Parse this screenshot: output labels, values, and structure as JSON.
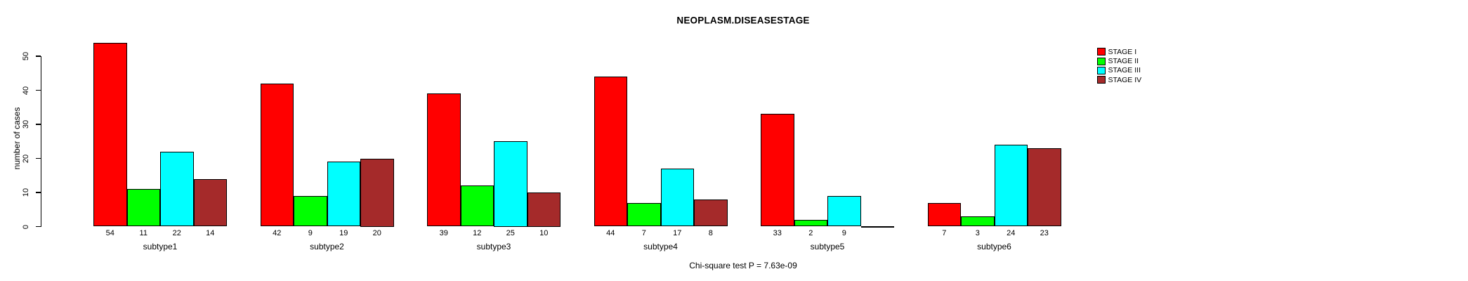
{
  "chart_data": {
    "type": "bar",
    "title": "NEOPLASM.DISEASESTAGE",
    "ylabel": "number of cases",
    "xlabel": "",
    "ylim": [
      0,
      50
    ],
    "yticks": [
      0,
      10,
      20,
      30,
      40,
      50
    ],
    "grid": false,
    "legend_position": "right-outside-top",
    "categories": [
      "subtype1",
      "subtype2",
      "subtype3",
      "subtype4",
      "subtype5",
      "subtype6"
    ],
    "series": [
      {
        "name": "STAGE I",
        "color": "#FF0000",
        "values": [
          54,
          42,
          39,
          44,
          33,
          7
        ]
      },
      {
        "name": "STAGE II",
        "color": "#00FF00",
        "values": [
          11,
          9,
          12,
          7,
          2,
          3
        ]
      },
      {
        "name": "STAGE III",
        "color": "#00FFFF",
        "values": [
          22,
          19,
          25,
          17,
          9,
          24
        ]
      },
      {
        "name": "STAGE IV",
        "color": "#A52A2A",
        "values": [
          14,
          20,
          10,
          8,
          0,
          23
        ]
      }
    ],
    "value_labels": [
      [
        "54",
        "11",
        "22",
        "14"
      ],
      [
        "42",
        "9",
        "19",
        "20"
      ],
      [
        "39",
        "12",
        "25",
        "10"
      ],
      [
        "44",
        "7",
        "17",
        "8"
      ],
      [
        "33",
        "2",
        "9",
        ""
      ],
      [
        "7",
        "3",
        "24",
        "23"
      ]
    ],
    "annotation": "Chi-square test P = 7.63e-09",
    "axis_color": "#000000",
    "text_color": "#000000",
    "background_color": "#FFFFFF"
  }
}
